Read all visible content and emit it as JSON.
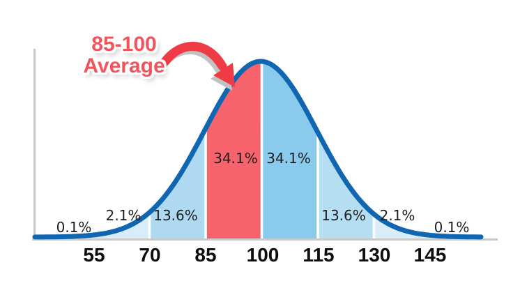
{
  "chart_data": {
    "type": "area",
    "title": "",
    "description": "Normal distribution bell curve of IQ scores with standard-deviation bands",
    "mean": 100,
    "sigma": 15,
    "x_ticks": [
      "55",
      "70",
      "85",
      "100",
      "115",
      "130",
      "145"
    ],
    "segments": [
      {
        "from": null,
        "to": 55,
        "label": "0.1%",
        "fill": "#d8edf8"
      },
      {
        "from": 55,
        "to": 70,
        "label": "2.1%",
        "fill": "#d8edf8"
      },
      {
        "from": 70,
        "to": 85,
        "label": "13.6%",
        "fill": "#aed9f1"
      },
      {
        "from": 85,
        "to": 100,
        "label": "34.1%",
        "fill": "#f6636c",
        "highlighted": true
      },
      {
        "from": 100,
        "to": 115,
        "label": "34.1%",
        "fill": "#8acbed"
      },
      {
        "from": 115,
        "to": 130,
        "label": "13.6%",
        "fill": "#b6def3"
      },
      {
        "from": 130,
        "to": 145,
        "label": "2.1%",
        "fill": "#d8edf8"
      },
      {
        "from": 145,
        "to": null,
        "label": "0.1%",
        "fill": "#d8edf8"
      }
    ],
    "annotation": {
      "line1": "85-100",
      "line2": "Average"
    },
    "colors": {
      "curve": "#1166b2",
      "axis": "#c9c9c9",
      "annotation_text": "#f1545d",
      "arrow": "#ee3b45",
      "arrow_shadow": "#c2c2c2",
      "label_text": "#1d1d1d"
    },
    "legend": "none",
    "grid": "off"
  }
}
